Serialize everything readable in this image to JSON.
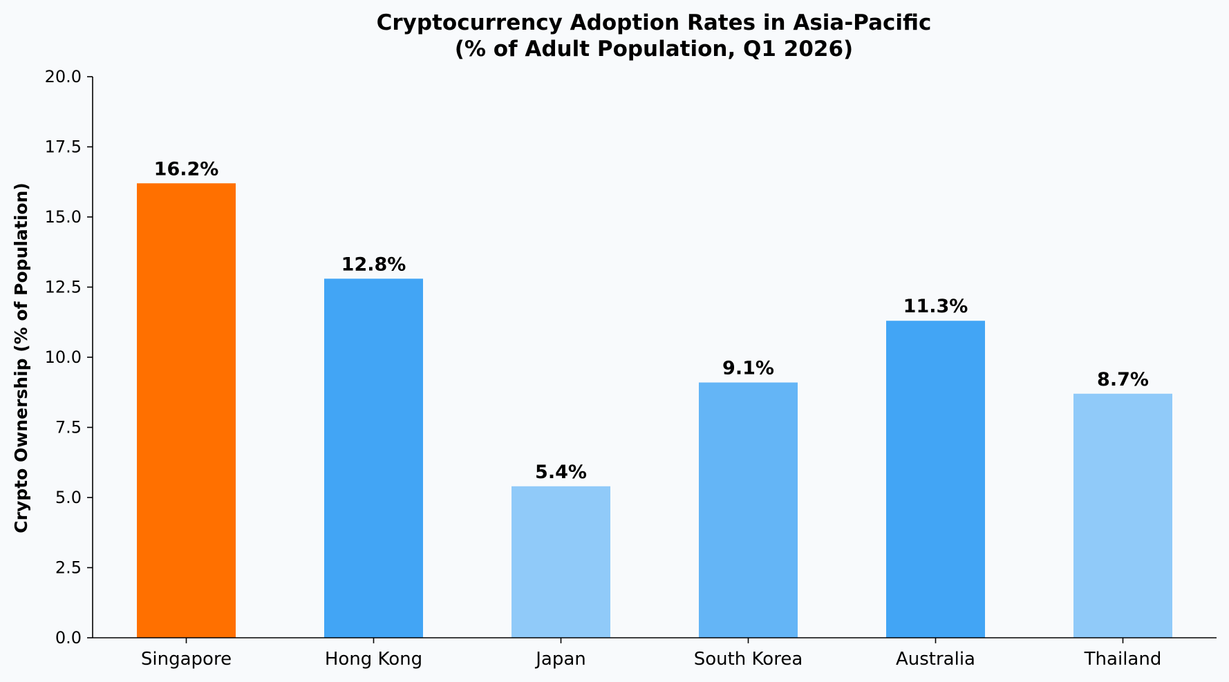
{
  "chart_data": {
    "type": "bar",
    "title_lines": [
      "Cryptocurrency Adoption Rates in Asia-Pacific",
      "(% of Adult Population, Q1 2026)"
    ],
    "xlabel": "",
    "ylabel": "Crypto Ownership (% of Population)",
    "ylim": [
      0,
      20
    ],
    "yticks": [
      "0.0",
      "2.5",
      "5.0",
      "7.5",
      "10.0",
      "12.5",
      "15.0",
      "17.5",
      "20.0"
    ],
    "ytick_values": [
      0,
      2.5,
      5,
      7.5,
      10,
      12.5,
      15,
      17.5,
      20
    ],
    "categories": [
      "Singapore",
      "Hong Kong",
      "Japan",
      "South Korea",
      "Australia",
      "Thailand"
    ],
    "values": [
      16.2,
      12.8,
      5.4,
      9.1,
      11.3,
      8.7
    ],
    "data_labels": [
      "16.2%",
      "12.8%",
      "5.4%",
      "9.1%",
      "11.3%",
      "8.7%"
    ],
    "bar_colors": [
      "#ff7000",
      "#42a5f5",
      "#90caf9",
      "#64b5f6",
      "#42a5f5",
      "#90caf9"
    ],
    "grid": false,
    "legend": "none"
  },
  "colors": {
    "background": "#f8fafc",
    "axis": "#000000",
    "text": "#000000"
  }
}
